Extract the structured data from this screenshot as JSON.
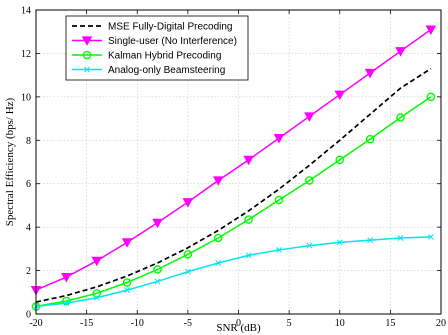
{
  "chart_data": {
    "type": "line",
    "title": "",
    "xlabel": "SNR (dB)",
    "ylabel": "Spectral Efficiency (bps/ Hz)",
    "xlim": [
      -20,
      20
    ],
    "ylim": [
      0,
      14
    ],
    "xticks": [
      -20,
      -15,
      -10,
      -5,
      0,
      5,
      10,
      15,
      20
    ],
    "yticks": [
      0,
      2,
      4,
      6,
      8,
      10,
      12,
      14
    ],
    "grid": true,
    "legend_position": "top-left",
    "x": [
      -20,
      -17,
      -14,
      -11,
      -8,
      -5,
      -2,
      1,
      4,
      7,
      10,
      13,
      16,
      19
    ],
    "series": [
      {
        "name": "MSE Fully-Digital Precoding",
        "color": "#000000",
        "dash": "dashed",
        "marker": "none",
        "values": [
          0.55,
          0.85,
          1.25,
          1.75,
          2.35,
          3.05,
          3.85,
          4.75,
          5.75,
          6.85,
          8.0,
          9.2,
          10.4,
          11.3
        ]
      },
      {
        "name": "Single-user (No Interference)",
        "color": "#ff00ff",
        "dash": "solid",
        "marker": "triangle-down",
        "values": [
          1.1,
          1.7,
          2.45,
          3.3,
          4.2,
          5.15,
          6.15,
          7.1,
          8.1,
          9.1,
          10.1,
          11.1,
          12.1,
          13.1
        ]
      },
      {
        "name": "Kalman Hybrid Precoding",
        "color": "#00ff00",
        "dash": "solid",
        "marker": "circle",
        "values": [
          0.35,
          0.6,
          0.95,
          1.45,
          2.05,
          2.75,
          3.5,
          4.35,
          5.25,
          6.15,
          7.1,
          8.05,
          9.05,
          10.0
        ]
      },
      {
        "name": "Analog-only Beamsteering",
        "color": "#00e5ee",
        "dash": "solid",
        "marker": "x",
        "values": [
          0.35,
          0.5,
          0.75,
          1.1,
          1.5,
          1.95,
          2.35,
          2.7,
          2.95,
          3.15,
          3.3,
          3.4,
          3.5,
          3.55
        ]
      }
    ]
  }
}
